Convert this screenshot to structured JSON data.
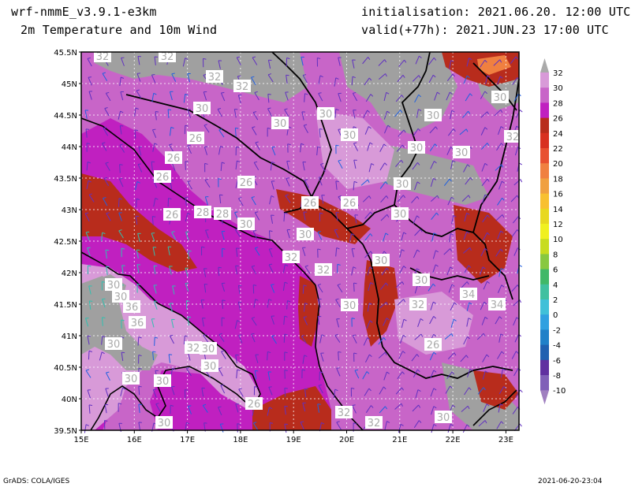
{
  "header": {
    "model": "wrf-nmmE_v3.9.1-e3km",
    "product": "2m Temperature and 10m Wind",
    "init": "initialisation: 2021.06.20. 12:00 UTC",
    "valid": "valid(+77h): 2021.JUN.23 17:00 UTC"
  },
  "footer": {
    "credit": "GrADS: COLA/IGES",
    "timestamp": "2021-06-20-23:04"
  },
  "map": {
    "lat_labels": [
      "45.5N",
      "45N",
      "44.5N",
      "44N",
      "43.5N",
      "43N",
      "42.5N",
      "42N",
      "41.5N",
      "41N",
      "40.5N",
      "40N",
      "39.5N"
    ],
    "lon_labels": [
      "15E",
      "16E",
      "17E",
      "18E",
      "19E",
      "20E",
      "21E",
      "22E",
      "23E"
    ],
    "contour_labels": [
      "32",
      "32",
      "32",
      "32",
      "30",
      "30",
      "30",
      "30",
      "30",
      "30",
      "26",
      "26",
      "26",
      "26",
      "26",
      "26",
      "30",
      "32",
      "30",
      "30",
      "30",
      "26",
      "28",
      "28",
      "30",
      "30",
      "32",
      "32",
      "30",
      "30",
      "30",
      "30",
      "36",
      "36",
      "30",
      "32",
      "34",
      "34",
      "30",
      "32",
      "30",
      "30",
      "30",
      "30",
      "26",
      "30",
      "32",
      "32",
      "30",
      "26"
    ]
  },
  "legend": {
    "labels": [
      "32",
      "30",
      "28",
      "26",
      "24",
      "22",
      "20",
      "18",
      "16",
      "14",
      "12",
      "10",
      "8",
      "6",
      "4",
      "2",
      "0",
      "-2",
      "-4",
      "-6",
      "-8",
      "-10"
    ],
    "colors": [
      "#aaaaaa",
      "#d89ad8",
      "#c865c8",
      "#c020c0",
      "#b82c1c",
      "#d83020",
      "#e85030",
      "#f08040",
      "#f0a040",
      "#f8c030",
      "#e8d820",
      "#f0f020",
      "#c8dc20",
      "#88c840",
      "#40b868",
      "#40c0a0",
      "#40c0d8",
      "#30a0e0",
      "#2080c8",
      "#2060b0",
      "#6030a0",
      "#8060b8"
    ],
    "top_color": "#aaaaaa",
    "bottom_color": "#a080c0"
  },
  "colors": {
    "magenta": "#c020c0",
    "pink": "#c865c8",
    "light_pink": "#d89ad8",
    "grey": "#a0a0a0",
    "dark_red": "#b82c1c",
    "wind_barb": "#6030c0"
  }
}
